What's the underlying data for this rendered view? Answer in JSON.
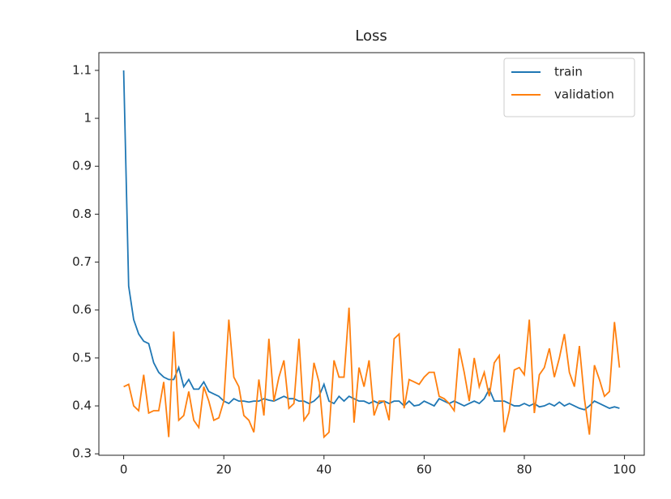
{
  "chart_data": {
    "type": "line",
    "title": "Loss",
    "x": [
      0,
      1,
      2,
      3,
      4,
      5,
      6,
      7,
      8,
      9,
      10,
      11,
      12,
      13,
      14,
      15,
      16,
      17,
      18,
      19,
      20,
      21,
      22,
      23,
      24,
      25,
      26,
      27,
      28,
      29,
      30,
      31,
      32,
      33,
      34,
      35,
      36,
      37,
      38,
      39,
      40,
      41,
      42,
      43,
      44,
      45,
      46,
      47,
      48,
      49,
      50,
      51,
      52,
      53,
      54,
      55,
      56,
      57,
      58,
      59,
      60,
      61,
      62,
      63,
      64,
      65,
      66,
      67,
      68,
      69,
      70,
      71,
      72,
      73,
      74,
      75,
      76,
      77,
      78,
      79,
      80,
      81,
      82,
      83,
      84,
      85,
      86,
      87,
      88,
      89,
      90,
      91,
      92,
      93,
      94,
      95,
      96,
      97,
      98,
      99
    ],
    "series": [
      {
        "name": "train",
        "color": "#1f77b4",
        "values": [
          1.1,
          0.65,
          0.58,
          0.55,
          0.535,
          0.53,
          0.49,
          0.47,
          0.46,
          0.455,
          0.455,
          0.48,
          0.44,
          0.455,
          0.435,
          0.435,
          0.45,
          0.43,
          0.425,
          0.42,
          0.41,
          0.405,
          0.415,
          0.41,
          0.41,
          0.408,
          0.41,
          0.41,
          0.415,
          0.412,
          0.41,
          0.415,
          0.42,
          0.415,
          0.415,
          0.41,
          0.41,
          0.405,
          0.41,
          0.42,
          0.445,
          0.41,
          0.405,
          0.42,
          0.41,
          0.42,
          0.415,
          0.41,
          0.41,
          0.405,
          0.41,
          0.405,
          0.41,
          0.405,
          0.41,
          0.41,
          0.4,
          0.41,
          0.4,
          0.402,
          0.41,
          0.405,
          0.4,
          0.415,
          0.41,
          0.405,
          0.41,
          0.405,
          0.4,
          0.405,
          0.41,
          0.405,
          0.415,
          0.435,
          0.41,
          0.41,
          0.41,
          0.405,
          0.4,
          0.4,
          0.405,
          0.4,
          0.405,
          0.398,
          0.4,
          0.405,
          0.4,
          0.408,
          0.4,
          0.405,
          0.4,
          0.395,
          0.392,
          0.4,
          0.41,
          0.405,
          0.4,
          0.395,
          0.398,
          0.395
        ]
      },
      {
        "name": "validation",
        "color": "#ff7f0e",
        "values": [
          0.44,
          0.445,
          0.4,
          0.39,
          0.465,
          0.385,
          0.39,
          0.39,
          0.45,
          0.335,
          0.555,
          0.37,
          0.38,
          0.43,
          0.37,
          0.355,
          0.44,
          0.41,
          0.37,
          0.375,
          0.41,
          0.58,
          0.46,
          0.44,
          0.38,
          0.37,
          0.345,
          0.455,
          0.38,
          0.54,
          0.41,
          0.46,
          0.495,
          0.395,
          0.405,
          0.54,
          0.37,
          0.385,
          0.49,
          0.45,
          0.335,
          0.345,
          0.495,
          0.46,
          0.46,
          0.605,
          0.365,
          0.48,
          0.44,
          0.495,
          0.38,
          0.41,
          0.41,
          0.37,
          0.54,
          0.55,
          0.395,
          0.455,
          0.45,
          0.445,
          0.46,
          0.47,
          0.47,
          0.42,
          0.415,
          0.405,
          0.39,
          0.52,
          0.47,
          0.41,
          0.5,
          0.44,
          0.47,
          0.42,
          0.49,
          0.505,
          0.345,
          0.39,
          0.475,
          0.48,
          0.465,
          0.58,
          0.385,
          0.465,
          0.48,
          0.52,
          0.46,
          0.5,
          0.55,
          0.47,
          0.44,
          0.525,
          0.415,
          0.34,
          0.485,
          0.455,
          0.42,
          0.43,
          0.575,
          0.48
        ]
      }
    ],
    "xlim": [
      -4.95,
      103.95
    ],
    "xticks": [
      0,
      20,
      40,
      60,
      80,
      100
    ],
    "ylim": [
      0.297,
      1.137
    ],
    "yticks": [
      0.3,
      0.4,
      0.5,
      0.6,
      0.7,
      0.8,
      0.9,
      1.0,
      1.1
    ],
    "legend": "upper right"
  }
}
